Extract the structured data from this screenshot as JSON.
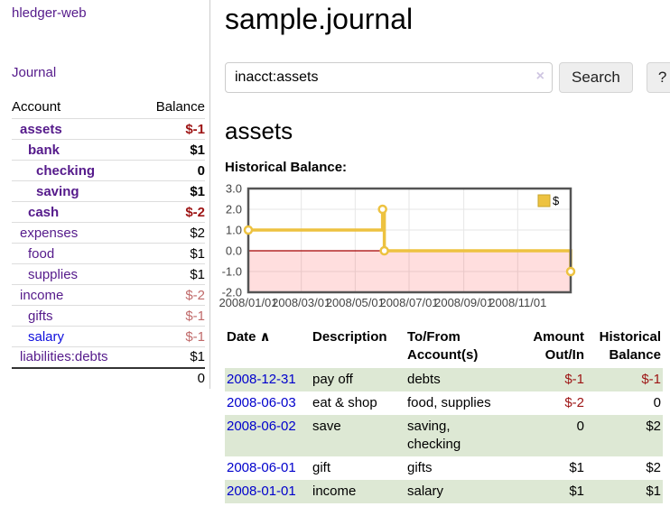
{
  "colors": {
    "link_purple": "#551a8b",
    "link_blue": "#0f0fdd",
    "date_link_blue": "#0000cc",
    "negative_strong": "#9d1414",
    "negative_soft": "#c06a6a",
    "row_stripe_green": "#dde8d4",
    "series_gold": "#edc240",
    "button_bg": "#eeeeee"
  },
  "sidebar": {
    "brand": "hledger-web",
    "nav": {
      "journal": "Journal"
    },
    "accounts_table": {
      "headers": {
        "account": "Account",
        "balance": "Balance"
      },
      "rows": [
        {
          "name": "assets",
          "indent": 1,
          "in_query": true,
          "balance": "$-1",
          "tone": "neg-strong"
        },
        {
          "name": "bank",
          "indent": 2,
          "in_query": true,
          "balance": "$1",
          "tone": "plain"
        },
        {
          "name": "checking",
          "indent": 3,
          "in_query": true,
          "balance": "0",
          "tone": "plain"
        },
        {
          "name": "saving",
          "indent": 3,
          "in_query": true,
          "balance": "$1",
          "tone": "plain"
        },
        {
          "name": "cash",
          "indent": 2,
          "in_query": true,
          "balance": "$-2",
          "tone": "neg-strong"
        },
        {
          "name": "expenses",
          "indent": 1,
          "in_query": false,
          "balance": "$2",
          "tone": "plain"
        },
        {
          "name": "food",
          "indent": 2,
          "in_query": false,
          "balance": "$1",
          "tone": "plain"
        },
        {
          "name": "supplies",
          "indent": 2,
          "in_query": false,
          "balance": "$1",
          "tone": "plain"
        },
        {
          "name": "income",
          "indent": 1,
          "in_query": false,
          "balance": "$-2",
          "tone": "neg-soft"
        },
        {
          "name": "gifts",
          "indent": 2,
          "in_query": false,
          "balance": "$-1",
          "tone": "neg-soft"
        },
        {
          "name": "salary",
          "indent": 2,
          "in_query": false,
          "balance": "$-1",
          "tone": "neg-soft",
          "link_state": "unvisited"
        },
        {
          "name": "liabilities:debts",
          "indent": 1,
          "in_query": false,
          "balance": "$1",
          "tone": "plain"
        }
      ],
      "total": "0"
    }
  },
  "header": {
    "title": "sample.journal"
  },
  "search": {
    "query": "inacct:assets",
    "clear_icon": "×",
    "search_label": "Search",
    "help_label": "?"
  },
  "main": {
    "account_title": "assets",
    "chart_title": "Historical Balance:"
  },
  "chart_data": {
    "type": "line",
    "style": "step",
    "title": "Historical Balance:",
    "legend": {
      "label": "$",
      "position": "top-right",
      "swatch_color": "#edc240",
      "swatch_border": "#c7a42e"
    },
    "series": [
      {
        "name": "$",
        "color": "#edc240",
        "points": [
          {
            "date": "2008-01-01",
            "day": 0,
            "value": 1
          },
          {
            "date": "2008-06-01",
            "day": 152,
            "value": 2
          },
          {
            "date": "2008-06-03",
            "day": 154,
            "value": 0
          },
          {
            "date": "2008-12-31",
            "day": 365,
            "value": -1
          }
        ]
      }
    ],
    "x_range_days": [
      0,
      365
    ],
    "x_ticks": [
      {
        "day": 0,
        "label": "2008/01/01"
      },
      {
        "day": 60,
        "label": "2008/03/01"
      },
      {
        "day": 121,
        "label": "2008/05/01"
      },
      {
        "day": 182,
        "label": "2008/07/01"
      },
      {
        "day": 244,
        "label": "2008/09/01"
      },
      {
        "day": 305,
        "label": "2008/11/01"
      }
    ],
    "ylim": [
      -2,
      3
    ],
    "y_ticks": [
      "3.0",
      "2.0",
      "1.0",
      "0.0",
      "-1.0",
      "-2.0"
    ],
    "grid": true,
    "grid_color": "#e6e6e6",
    "border_color": "#545454",
    "zero_line_color": "#a40000",
    "negative_region_fill": "rgba(255,0,0,0.13)"
  },
  "register": {
    "headers": {
      "date": "Date",
      "sort_icon": "∧",
      "description": "Description",
      "tofrom": "To/From Account(s)",
      "amount": "Amount Out/In",
      "balance": "Historical Balance"
    },
    "rows": [
      {
        "date": "2008-12-31",
        "description": "pay off",
        "accounts": "debts",
        "amount": "$-1",
        "amount_negative": true,
        "balance": "$-1",
        "balance_negative": true,
        "stripe": true
      },
      {
        "date": "2008-06-03",
        "description": "eat & shop",
        "accounts": "food, supplies",
        "amount": "$-2",
        "amount_negative": true,
        "balance": "0",
        "balance_negative": false,
        "stripe": false
      },
      {
        "date": "2008-06-02",
        "description": "save",
        "accounts": "saving, checking",
        "amount": "0",
        "amount_negative": false,
        "balance": "$2",
        "balance_negative": false,
        "stripe": true
      },
      {
        "date": "2008-06-01",
        "description": "gift",
        "accounts": "gifts",
        "amount": "$1",
        "amount_negative": false,
        "balance": "$2",
        "balance_negative": false,
        "stripe": false
      },
      {
        "date": "2008-01-01",
        "description": "income",
        "accounts": "salary",
        "amount": "$1",
        "amount_negative": false,
        "balance": "$1",
        "balance_negative": false,
        "stripe": true
      }
    ]
  }
}
